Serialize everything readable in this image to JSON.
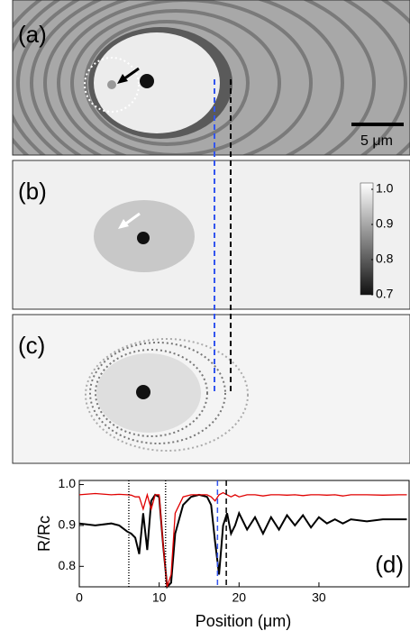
{
  "panels": [
    {
      "label": "(a)",
      "scale_bar": "5 μm"
    },
    {
      "label": "(b)",
      "colorbar": {
        "ticks": [
          {
            "value": 1.0,
            "label": "1.0"
          },
          0.9,
          0.8,
          0.7
        ],
        "lim": [
          0.7,
          1.0
        ]
      }
    },
    {
      "label": "(c)"
    }
  ],
  "chart_data": {
    "type": "line",
    "xlabel": "Position (μm)",
    "ylabel": "R/Rc",
    "annotation": "(d)",
    "x": [
      0,
      2,
      4,
      5,
      6,
      6.5,
      7,
      7.5,
      8,
      8.5,
      9,
      9.5,
      10,
      10.5,
      11,
      11.5,
      12,
      13,
      14,
      15,
      16,
      16.5,
      17,
      17.5,
      18,
      18.5,
      19,
      19.5,
      20,
      21,
      22,
      23,
      24,
      25,
      26,
      27,
      28,
      29,
      30,
      31,
      32,
      33,
      34,
      36,
      38,
      40,
      41
    ],
    "series": [
      {
        "color": "#000000",
        "values": [
          0.905,
          0.9,
          0.905,
          0.9,
          0.885,
          0.88,
          0.87,
          0.83,
          0.93,
          0.84,
          0.96,
          0.975,
          0.97,
          0.85,
          0.75,
          0.76,
          0.88,
          0.95,
          0.97,
          0.975,
          0.97,
          0.95,
          0.86,
          0.78,
          0.9,
          0.93,
          0.88,
          0.9,
          0.93,
          0.89,
          0.92,
          0.88,
          0.92,
          0.89,
          0.925,
          0.9,
          0.925,
          0.895,
          0.92,
          0.905,
          0.915,
          0.905,
          0.915,
          0.91,
          0.915,
          0.915,
          0.915
        ]
      },
      {
        "color": "#e00000",
        "values": [
          0.975,
          0.978,
          0.975,
          0.976,
          0.975,
          0.974,
          0.97,
          0.97,
          0.94,
          0.975,
          0.94,
          0.975,
          0.975,
          0.85,
          0.75,
          0.78,
          0.93,
          0.97,
          0.975,
          0.975,
          0.975,
          0.97,
          0.96,
          0.975,
          0.98,
          0.975,
          0.97,
          0.975,
          0.97,
          0.975,
          0.975,
          0.972,
          0.975,
          0.975,
          0.974,
          0.975,
          0.973,
          0.975,
          0.975,
          0.974,
          0.975,
          0.972,
          0.975,
          0.975,
          0.974,
          0.975,
          0.975
        ]
      }
    ],
    "vlines": [
      {
        "x": 6.2,
        "color": "#000000",
        "dash": "1,2"
      },
      {
        "x": 10.8,
        "color": "#000000",
        "dash": "1,2"
      },
      {
        "x": 17.3,
        "color": "#3355ee",
        "dash": "6,4"
      },
      {
        "x": 18.4,
        "color": "#000000",
        "dash": "6,4"
      }
    ],
    "xlim": [
      0,
      41.4
    ],
    "ylim": [
      0.75,
      1.01
    ],
    "xticks": [
      0,
      10,
      20,
      30
    ],
    "yticks": [
      0.8,
      0.9,
      {
        "value": 1.0,
        "label": "1.0"
      }
    ]
  }
}
